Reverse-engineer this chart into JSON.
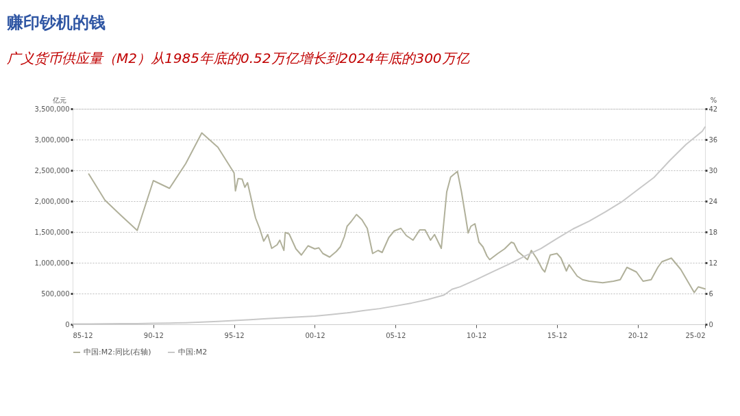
{
  "chart_data": {
    "type": "line",
    "title": "赚印钞机的钱",
    "subtitle": "广义货币供应量（M2）从1985年底的0.52万亿增长到2024年底的300万亿",
    "ylabel": "亿元",
    "y2label": "%",
    "xlim": [
      "1985-12",
      "2025-02"
    ],
    "xticks": [
      {
        "value": "1985-12",
        "label": "85-12"
      },
      {
        "value": "1990-12",
        "label": "90-12"
      },
      {
        "value": "1995-12",
        "label": "95-12"
      },
      {
        "value": "2000-12",
        "label": "00-12"
      },
      {
        "value": "2005-12",
        "label": "05-12"
      },
      {
        "value": "2010-12",
        "label": "10-12"
      },
      {
        "value": "2015-12",
        "label": "15-12"
      },
      {
        "value": "2020-12",
        "label": "20-12"
      },
      {
        "value": "2025-02",
        "label": "25-02"
      }
    ],
    "ylim": [
      0,
      3500000
    ],
    "yticks": [
      0,
      {
        "value": 500000,
        "label": "500,000"
      },
      {
        "value": 1000000,
        "label": "1,000,000"
      },
      {
        "value": 1500000,
        "label": "1,500,000"
      },
      {
        "value": 2000000,
        "label": "2,000,000"
      },
      {
        "value": 2500000,
        "label": "2,500,000"
      },
      {
        "value": 3000000,
        "label": "3,000,000"
      },
      {
        "value": 3500000,
        "label": "3,500,000"
      }
    ],
    "y2lim": [
      0,
      42
    ],
    "y2ticks": [
      0,
      6,
      12,
      18,
      24,
      30,
      36,
      42
    ],
    "grid": "y",
    "legend": "bottom",
    "series": [
      {
        "name": "中国:M2:同比(右轴)",
        "color": "#b0b09a",
        "axis": "y2",
        "x": [
          "1986-12",
          "1987-12",
          "1988-12",
          "1989-12",
          "1990-12",
          "1991-12",
          "1992-12",
          "1993-12",
          "1994-12",
          "1995-12",
          "1996-01",
          "1996-03",
          "1996-06",
          "1996-08",
          "1996-10",
          "1996-12",
          "1997-03",
          "1997-04",
          "1997-07",
          "1997-10",
          "1998-01",
          "1998-04",
          "1998-08",
          "1998-10",
          "1999-01",
          "1999-02",
          "1999-05",
          "1999-10",
          "2000-02",
          "2000-07",
          "2000-12",
          "2001-03",
          "2001-06",
          "2001-11",
          "2002-04",
          "2002-07",
          "2002-10",
          "2002-12",
          "2003-03",
          "2003-07",
          "2003-11",
          "2004-02",
          "2004-03",
          "2004-07",
          "2004-11",
          "2005-02",
          "2005-07",
          "2005-11",
          "2006-04",
          "2006-08",
          "2007-01",
          "2007-06",
          "2007-10",
          "2008-02",
          "2008-05",
          "2008-10",
          "2009-02",
          "2009-05",
          "2009-10",
          "2010-01",
          "2010-04",
          "2010-06",
          "2010-08",
          "2010-11",
          "2011-02",
          "2011-05",
          "2011-08",
          "2011-10",
          "2012-04",
          "2012-09",
          "2013-02",
          "2013-04",
          "2013-07",
          "2014-02",
          "2014-05",
          "2014-09",
          "2015-01",
          "2015-03",
          "2015-07",
          "2015-12",
          "2016-03",
          "2016-07",
          "2016-09",
          "2017-03",
          "2017-07",
          "2017-12",
          "2018-10",
          "2019-06",
          "2019-11",
          "2020-04",
          "2020-11",
          "2021-04",
          "2021-10",
          "2022-03",
          "2022-06",
          "2023-01",
          "2023-08",
          "2023-12",
          "2024-06",
          "2024-09",
          "2025-02"
        ],
        "values": [
          29.3,
          24.2,
          21.2,
          18.3,
          28.0,
          26.5,
          31.3,
          37.3,
          34.5,
          29.5,
          26.0,
          28.4,
          28.3,
          26.7,
          27.6,
          25.3,
          21.8,
          20.7,
          18.7,
          16.2,
          17.5,
          14.8,
          15.5,
          16.4,
          14.4,
          17.9,
          17.6,
          14.7,
          13.5,
          15.3,
          14.7,
          14.9,
          13.8,
          13.1,
          14.2,
          15.1,
          17.1,
          19.1,
          20.0,
          21.4,
          20.4,
          19.1,
          18.7,
          13.8,
          14.4,
          14.0,
          16.9,
          18.2,
          18.7,
          17.3,
          16.4,
          18.4,
          18.4,
          16.4,
          17.5,
          14.8,
          25.8,
          28.7,
          29.8,
          25.8,
          21.1,
          17.8,
          19.1,
          19.6,
          16.0,
          15.1,
          13.3,
          12.6,
          13.8,
          14.7,
          16.0,
          15.8,
          14.2,
          12.6,
          14.4,
          12.8,
          10.8,
          10.2,
          13.5,
          13.8,
          12.9,
          10.4,
          11.6,
          9.4,
          8.7,
          8.4,
          8.1,
          8.4,
          8.7,
          11.1,
          10.2,
          8.4,
          8.7,
          11.1,
          12.2,
          12.9,
          10.7,
          8.9,
          6.2,
          7.3,
          6.9
        ]
      },
      {
        "name": "中国:M2",
        "color": "#c8c8c8",
        "x": [
          "1985-12",
          "1986-12",
          "1987-12",
          "1988-12",
          "1989-12",
          "1990-12",
          "1991-12",
          "1992-12",
          "1993-12",
          "1994-12",
          "1995-12",
          "1996-12",
          "1997-12",
          "1998-12",
          "1999-12",
          "2000-12",
          "2001-12",
          "2002-12",
          "2003-12",
          "2004-12",
          "2005-12",
          "2006-12",
          "2007-12",
          "2008-12",
          "2009-06",
          "2009-12",
          "2010-12",
          "2011-12",
          "2012-12",
          "2013-12",
          "2014-12",
          "2015-12",
          "2016-12",
          "2017-12",
          "2018-12",
          "2019-12",
          "2020-12",
          "2021-12",
          "2022-12",
          "2023-12",
          "2024-12",
          "2025-02"
        ],
        "values": [
          5198,
          6721,
          8330,
          10100,
          11950,
          15293,
          19350,
          25402,
          34880,
          46924,
          60751,
          76095,
          90995,
          104499,
          119898,
          134610,
          158302,
          185007,
          221223,
          254107,
          298756,
          345578,
          403442,
          475167,
          568916,
          610225,
          725852,
          851591,
          974149,
          1106525,
          1228375,
          1392278,
          1550067,
          1676768,
          1826744,
          1986489,
          2186796,
          2382899,
          2664321,
          2922713,
          3135822,
          3205000
        ]
      }
    ]
  }
}
